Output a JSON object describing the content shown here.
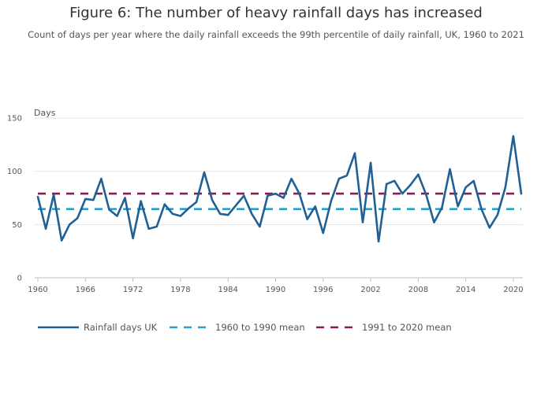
{
  "header": {
    "title": "Figure 6: The number of heavy rainfall days has increased",
    "subtitle": "Count of days per year where the daily rainfall exceeds the 99th percentile of daily rainfall, UK, 1960 to 2021"
  },
  "chart_data": {
    "type": "line",
    "title": "Figure 6: The number of heavy rainfall days has increased",
    "subtitle": "Count of days per year where the daily rainfall exceeds the 99th percentile of daily rainfall, UK, 1960 to 2021",
    "xlabel": "",
    "ylabel": "Days",
    "xlim": [
      1960,
      2021
    ],
    "ylim": [
      0,
      150
    ],
    "xticks": [
      1960,
      1966,
      1972,
      1978,
      1984,
      1990,
      1996,
      2002,
      2008,
      2014,
      2020
    ],
    "yticks": [
      0,
      50,
      100,
      150
    ],
    "grid": "horizontal",
    "legend_position": "bottom",
    "series": [
      {
        "name": "Rainfall days UK",
        "color": "#206095",
        "style": "solid",
        "x": [
          1960,
          1961,
          1962,
          1963,
          1964,
          1965,
          1966,
          1967,
          1968,
          1969,
          1970,
          1971,
          1972,
          1973,
          1974,
          1975,
          1976,
          1977,
          1978,
          1979,
          1980,
          1981,
          1982,
          1983,
          1984,
          1985,
          1986,
          1987,
          1988,
          1989,
          1990,
          1991,
          1992,
          1993,
          1994,
          1995,
          1996,
          1997,
          1998,
          1999,
          2000,
          2001,
          2002,
          2003,
          2004,
          2005,
          2006,
          2007,
          2008,
          2009,
          2010,
          2011,
          2012,
          2013,
          2014,
          2015,
          2016,
          2017,
          2018,
          2019,
          2020,
          2021
        ],
        "values": [
          76,
          46,
          78,
          35,
          50,
          56,
          74,
          73,
          93,
          64,
          58,
          75,
          37,
          72,
          46,
          48,
          69,
          60,
          58,
          65,
          71,
          99,
          73,
          60,
          59,
          68,
          77,
          60,
          48,
          77,
          79,
          75,
          93,
          79,
          55,
          67,
          42,
          72,
          93,
          96,
          117,
          52,
          108,
          34,
          88,
          91,
          79,
          87,
          97,
          78,
          52,
          66,
          102,
          67,
          85,
          91,
          64,
          47,
          59,
          85,
          133,
          79
        ]
      },
      {
        "name": "1960 to 1990 mean",
        "color": "#27a0cc",
        "style": "dashed",
        "x": [
          1960,
          2021
        ],
        "values": [
          64.5,
          64.5
        ]
      },
      {
        "name": "1991 to 2020 mean",
        "color": "#871a5b",
        "style": "dashed",
        "x": [
          1960,
          2021
        ],
        "values": [
          79,
          79
        ]
      }
    ]
  }
}
